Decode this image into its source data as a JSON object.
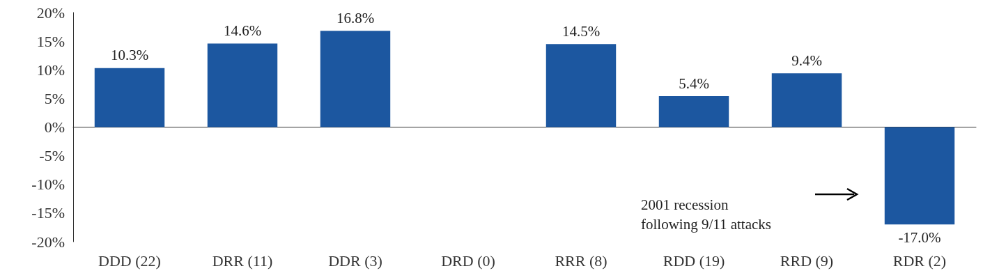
{
  "chart_data": {
    "type": "bar",
    "categories": [
      "DDD (22)",
      "DRR (11)",
      "DDR (3)",
      "DRD (0)",
      "RRR (8)",
      "RDD (19)",
      "RRD (9)",
      "RDR (2)"
    ],
    "values": [
      10.3,
      14.6,
      16.8,
      null,
      14.5,
      5.4,
      9.4,
      -17.0
    ],
    "value_labels": [
      "10.3%",
      "14.6%",
      "16.8%",
      null,
      "14.5%",
      "5.4%",
      "9.4%",
      "-17.0%"
    ],
    "color": "#1c57a0",
    "ylim": [
      -20,
      20
    ],
    "yticks": [
      {
        "value": -20,
        "label": "-20%"
      },
      {
        "value": -15,
        "label": "-15%"
      },
      {
        "value": -10,
        "label": "-10%"
      },
      {
        "value": -5,
        "label": "-5%"
      },
      {
        "value": 0,
        "label": "0%"
      },
      {
        "value": 5,
        "label": "5%"
      },
      {
        "value": 10,
        "label": "10%"
      },
      {
        "value": 15,
        "label": "15%"
      },
      {
        "value": 20,
        "label": "20%"
      }
    ],
    "annotations": [
      "2001 recession\nfollowing 9/11 attacks"
    ]
  }
}
